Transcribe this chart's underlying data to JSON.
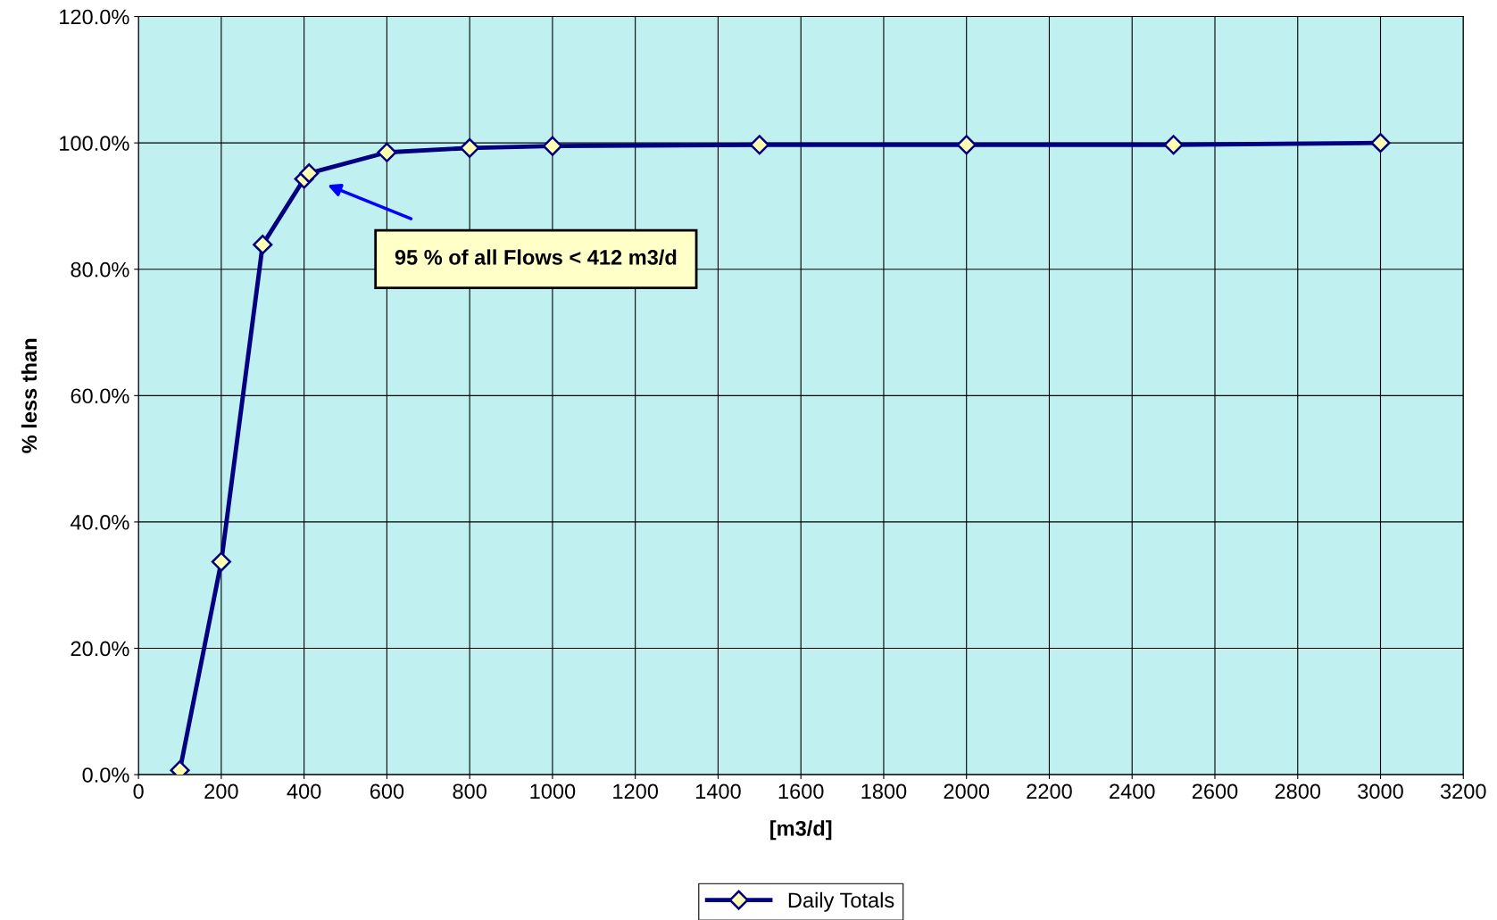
{
  "chart_data": {
    "type": "line",
    "xlabel": "[m3/d]",
    "ylabel": "% less than",
    "x": [
      100,
      200,
      300,
      400,
      412,
      600,
      800,
      1000,
      1500,
      2000,
      2500,
      3000
    ],
    "series": [
      {
        "name": "Daily Totals",
        "color": "#000080",
        "values": [
          0.7,
          33.7,
          83.9,
          94.3,
          95.2,
          98.5,
          99.2,
          99.5,
          99.7,
          99.7,
          99.7,
          100
        ]
      }
    ],
    "xlim": [
      0,
      3200
    ],
    "xticks": [
      0,
      200,
      400,
      600,
      800,
      1000,
      1200,
      1400,
      1600,
      1800,
      2000,
      2200,
      2400,
      2600,
      2800,
      3000,
      3200
    ],
    "ylim": [
      0,
      120
    ],
    "yticks": [
      {
        "value": 0,
        "label": "0.0%"
      },
      {
        "value": 20,
        "label": "20.0%"
      },
      {
        "value": 40,
        "label": "40.0%"
      },
      {
        "value": 60,
        "label": "60.0%"
      },
      {
        "value": 80,
        "label": "80.0%"
      },
      {
        "value": 100,
        "label": "100.0%"
      },
      {
        "value": 120,
        "label": "120.0%"
      }
    ],
    "grid": true,
    "legend": "bottom",
    "marker": "diamond",
    "line_style": "solid",
    "annotations": [
      "95 % of all Flows < 412 m3/d"
    ]
  }
}
